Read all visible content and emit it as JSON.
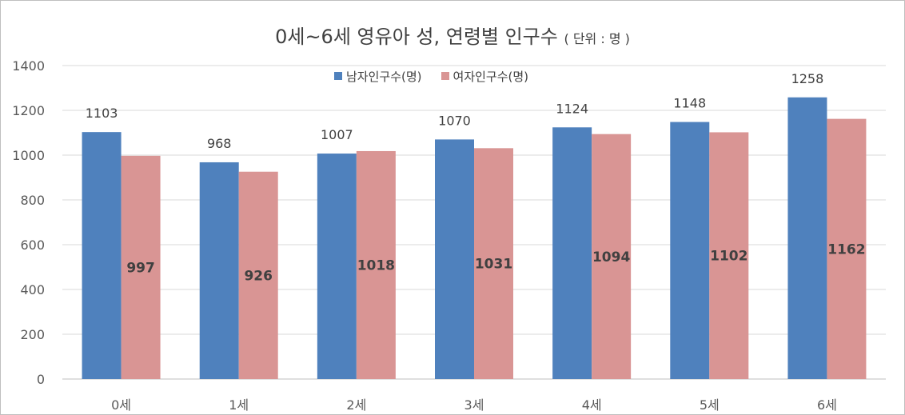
{
  "chart_data": {
    "type": "bar",
    "title": "0세~6세 영유아 성, 연령별 인구수",
    "title_unit": "( 단위 : 명 )",
    "categories": [
      "0세",
      "1세",
      "2세",
      "3세",
      "4세",
      "5세",
      "6세"
    ],
    "series": [
      {
        "name": "남자인구수(명)",
        "color": "#4f81bd",
        "values": [
          1103,
          968,
          1007,
          1070,
          1124,
          1148,
          1258
        ]
      },
      {
        "name": "여자인구수(명)",
        "color": "#d99594",
        "values": [
          997,
          926,
          1018,
          1031,
          1094,
          1102,
          1162
        ]
      }
    ],
    "ylim": [
      0,
      1400
    ],
    "yticks": [
      0,
      200,
      400,
      600,
      800,
      1000,
      1200,
      1400
    ],
    "grid": true,
    "legend_position": "top-center",
    "xlabel": "",
    "ylabel": ""
  }
}
